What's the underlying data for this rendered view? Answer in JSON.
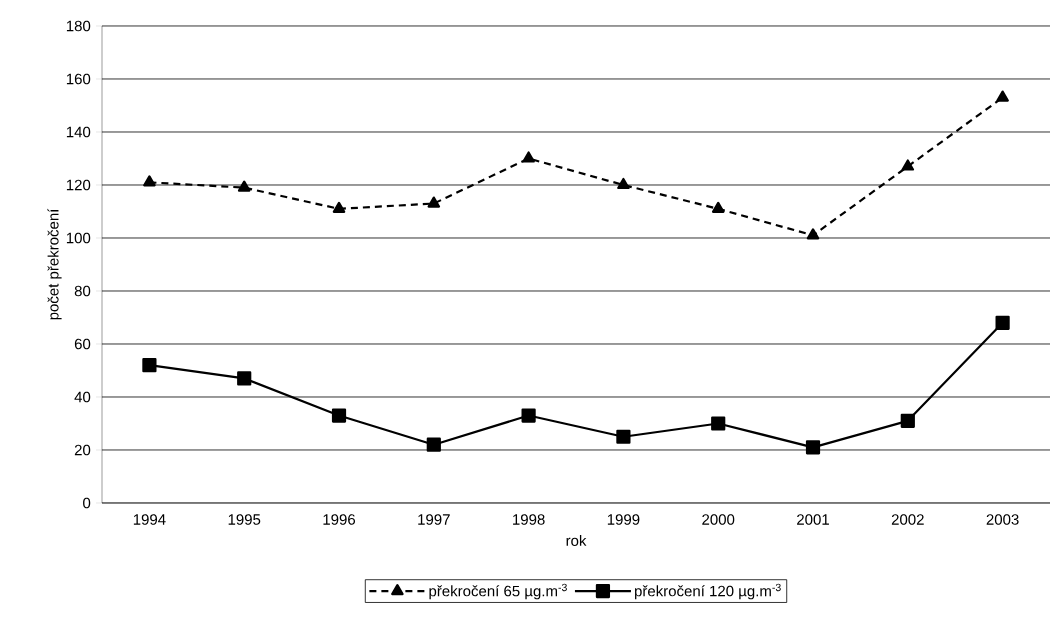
{
  "chart_data": {
    "type": "line",
    "xlabel": "rok",
    "ylabel": "počet překročení",
    "categories": [
      "1994",
      "1995",
      "1996",
      "1997",
      "1998",
      "1999",
      "2000",
      "2001",
      "2002",
      "2003"
    ],
    "series": [
      {
        "name": "překročení 65 µg.m$^{-3}$",
        "color": "#000000",
        "line_style": "dashed",
        "marker": "triangle",
        "values": [
          121,
          119,
          111,
          113,
          130,
          120,
          111,
          101,
          127,
          153
        ]
      },
      {
        "name": "překročení 120 µg.m$^{-3}$",
        "color": "#000000",
        "line_style": "solid",
        "marker": "square",
        "values": [
          52,
          47,
          33,
          22,
          33,
          25,
          30,
          21,
          31,
          68
        ]
      }
    ],
    "ylim": [
      0,
      180
    ],
    "yticks": [
      0,
      20,
      40,
      60,
      80,
      100,
      120,
      140,
      160,
      180
    ],
    "grid": "y",
    "legend": "bottom"
  }
}
